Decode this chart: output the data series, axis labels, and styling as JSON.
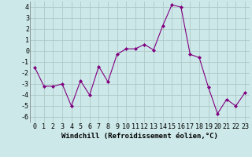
{
  "x": [
    0,
    1,
    2,
    3,
    4,
    5,
    6,
    7,
    8,
    9,
    10,
    11,
    12,
    13,
    14,
    15,
    16,
    17,
    18,
    19,
    20,
    21,
    22,
    23
  ],
  "y": [
    -1.5,
    -3.2,
    -3.2,
    -3.0,
    -5.0,
    -2.7,
    -4.0,
    -1.4,
    -2.8,
    -0.3,
    0.2,
    0.2,
    0.6,
    0.1,
    2.3,
    4.2,
    4.0,
    -0.3,
    -0.6,
    -3.3,
    -5.7,
    -4.4,
    -5.0,
    -3.8
  ],
  "line_color": "#800080",
  "marker": "D",
  "marker_size": 2.0,
  "line_width": 0.8,
  "bg_color": "#cce8e8",
  "grid_color": "#b0c8c8",
  "xlabel": "Windchill (Refroidissement éolien,°C)",
  "xlabel_fontsize": 6.5,
  "tick_fontsize": 6.0,
  "ylim": [
    -6.5,
    4.5
  ],
  "yticks": [
    -6,
    -5,
    -4,
    -3,
    -2,
    -1,
    0,
    1,
    2,
    3,
    4
  ],
  "xlim": [
    -0.5,
    23.5
  ],
  "xticks": [
    0,
    1,
    2,
    3,
    4,
    5,
    6,
    7,
    8,
    9,
    10,
    11,
    12,
    13,
    14,
    15,
    16,
    17,
    18,
    19,
    20,
    21,
    22,
    23
  ]
}
